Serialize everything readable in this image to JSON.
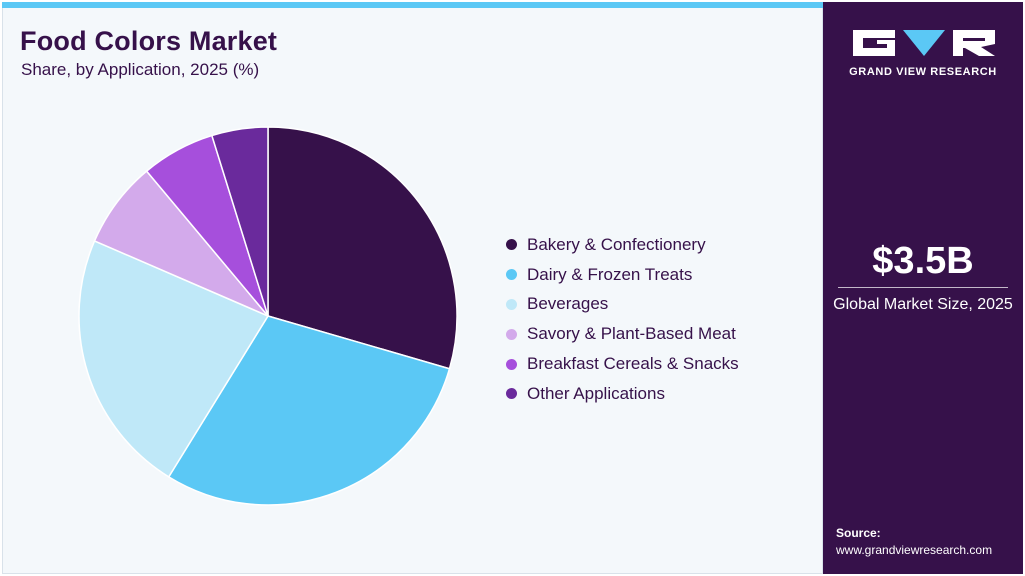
{
  "header": {
    "title": "Food Colors Market",
    "subtitle": "Share, by Application, 2025 (%)"
  },
  "chart_data": {
    "type": "pie",
    "title": "Food Colors Market",
    "subtitle": "Share, by Application, 2025 (%)",
    "categories": [
      "Bakery & Confectionery",
      "Dairy & Frozen Treats",
      "Beverages",
      "Savory & Plant-Based Meat",
      "Breakfast Cereals & Snacks",
      "Other Applications"
    ],
    "values": [
      29.5,
      29.3,
      22.7,
      7.4,
      6.3,
      4.8
    ],
    "colors": [
      "#36114a",
      "#5bc8f5",
      "#bfe8f8",
      "#d3aaeb",
      "#a64fdc",
      "#6a2a9c"
    ],
    "start_angle": "12 o'clock",
    "direction": "clockwise",
    "legend_position": "right"
  },
  "sidebar": {
    "brand": "GRAND VIEW RESEARCH",
    "logo_icon": "gvr-logo-icon",
    "market_value": "$3.5B",
    "market_label": "Global Market Size, 2025",
    "source_label": "Source:",
    "source_url": "www.grandviewresearch.com"
  },
  "theme": {
    "accent": "#5bc8f5",
    "panel": "#36114a",
    "background": "#f4f8fb"
  }
}
